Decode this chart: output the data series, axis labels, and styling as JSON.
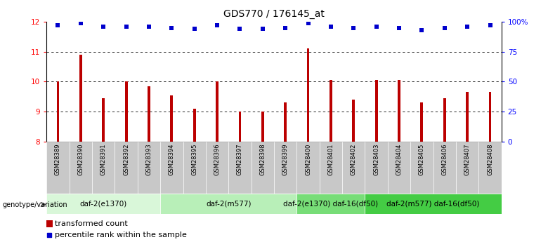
{
  "title": "GDS770 / 176145_at",
  "samples": [
    "GSM28389",
    "GSM28390",
    "GSM28391",
    "GSM28392",
    "GSM28393",
    "GSM28394",
    "GSM28395",
    "GSM28396",
    "GSM28397",
    "GSM28398",
    "GSM28399",
    "GSM28400",
    "GSM28401",
    "GSM28402",
    "GSM28403",
    "GSM28404",
    "GSM28405",
    "GSM28406",
    "GSM28407",
    "GSM28408"
  ],
  "bar_values": [
    10.0,
    10.9,
    9.45,
    10.0,
    9.85,
    9.55,
    9.1,
    10.0,
    9.0,
    9.0,
    9.3,
    11.1,
    10.05,
    9.4,
    10.05,
    10.05,
    9.3,
    9.45,
    9.65,
    9.65
  ],
  "percentile_values": [
    97,
    99,
    96,
    96,
    96,
    95,
    94,
    97,
    94,
    94,
    95,
    99,
    96,
    95,
    96,
    95,
    93,
    95,
    96,
    97
  ],
  "ylim_left": [
    8,
    12
  ],
  "ylim_right": [
    0,
    100
  ],
  "yticks_left": [
    8,
    9,
    10,
    11,
    12
  ],
  "ytick_labels_right": [
    "0",
    "25",
    "50",
    "75",
    "100%"
  ],
  "yticks_right": [
    0,
    25,
    50,
    75,
    100
  ],
  "bar_color": "#bb0000",
  "dot_color": "#0000cc",
  "groups": [
    {
      "label": "daf-2(e1370)",
      "start": 0,
      "end": 5,
      "color": "#d9f7d9"
    },
    {
      "label": "daf-2(m577)",
      "start": 5,
      "end": 11,
      "color": "#b8efb8"
    },
    {
      "label": "daf-2(e1370) daf-16(df50)",
      "start": 11,
      "end": 14,
      "color": "#77dd77"
    },
    {
      "label": "daf-2(m577) daf-16(df50)",
      "start": 14,
      "end": 20,
      "color": "#44cc44"
    }
  ],
  "genotype_label": "genotype/variation",
  "legend_bar_label": "transformed count",
  "legend_dot_label": "percentile rank within the sample",
  "title_fontsize": 10,
  "tick_fontsize": 7.5,
  "label_fontsize": 6,
  "group_fontsize": 7.5,
  "legend_fontsize": 8
}
